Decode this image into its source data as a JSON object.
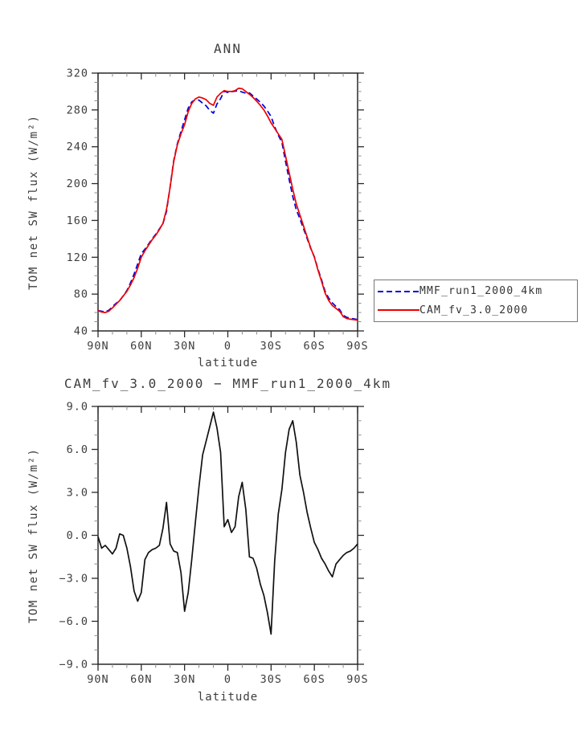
{
  "figure": {
    "background": "#ffffff",
    "text_color": "#3d3d3d",
    "frame_color": "#1a1a1a",
    "major_tick_color": "#2a2a2a",
    "minor_tick_color": "#8a8a8a"
  },
  "legend": {
    "entries": [
      {
        "label": "MMF_run1_2000_4km",
        "color": "#0000dd",
        "style": "dashed"
      },
      {
        "label": "CAM_fv_3.0_2000",
        "color": "#ee0000",
        "style": "solid"
      }
    ]
  },
  "chart_data": [
    {
      "type": "line",
      "title": "ANN",
      "xlabel": "latitude",
      "ylabel": "TOM net SW flux (W/m²)",
      "ylim": [
        40,
        320
      ],
      "ymajor_step": 40,
      "yminor_step": 10,
      "xtick_labels": [
        "90N",
        "60N",
        "30N",
        "0",
        "30S",
        "60S",
        "90S"
      ],
      "ytick_labels": [
        "40",
        "80",
        "120",
        "160",
        "200",
        "240",
        "280",
        "320"
      ],
      "grid": false,
      "legend_position": "outside-right-bottom",
      "lat_start": 90,
      "lat_step": -2.5,
      "series": [
        {
          "name": "MMF_run1_2000_4km",
          "color": "#0000dd",
          "dash": "7 4",
          "values": [
            62.1,
            61.4,
            60.7,
            62.5,
            66.3,
            69.9,
            72.9,
            78,
            83.9,
            92.2,
            101.9,
            112.6,
            124,
            128.7,
            134.2,
            140,
            144.9,
            150.7,
            156.5,
            169.7,
            196.6,
            225.1,
            243.2,
            256.6,
            269.3,
            282,
            288.7,
            291.1,
            290.6,
            287.4,
            284.4,
            279.4,
            276.4,
            286.5,
            292.2,
            300.4,
            298.9,
            299.8,
            300.4,
            300.8,
            299.3,
            298.2,
            298.5,
            295.1,
            291.8,
            288.4,
            284.2,
            278.9,
            272.9,
            261.8,
            252.5,
            244.8,
            224.2,
            204.6,
            186,
            171.5,
            161.8,
            151,
            140.4,
            129.5,
            120.5,
            107,
            95.6,
            83,
            75.5,
            70.4,
            66.5,
            63.2,
            56.9,
            54.7,
            53.8,
            53.1,
            52.3
          ]
        },
        {
          "name": "CAM_fv_3.0_2000",
          "color": "#ee0000",
          "dash": "",
          "values": [
            62,
            60.5,
            60,
            61.5,
            65,
            69,
            73,
            78,
            83,
            90,
            98,
            108,
            120,
            127,
            133,
            139,
            144,
            150,
            157,
            172,
            196,
            224,
            242,
            254,
            264,
            278,
            287,
            292,
            294,
            293,
            291,
            287,
            285,
            294,
            298,
            301,
            300,
            300,
            301,
            303.5,
            303,
            300,
            297,
            293.5,
            289.5,
            285,
            280,
            273.5,
            266,
            260,
            254,
            248,
            230,
            212,
            194,
            178,
            166,
            154,
            142,
            130,
            120,
            106,
            94,
            81,
            73,
            67.5,
            64.5,
            61.5,
            55.5,
            53.5,
            52.7,
            52.2,
            51.7
          ]
        }
      ]
    },
    {
      "type": "line",
      "title": "CAM_fv_3.0_2000 − MMF_run1_2000_4km",
      "xlabel": "latitude",
      "ylabel": "TOM net SW flux (W/m²)",
      "ylim": [
        -9,
        9
      ],
      "ymajor_step": 3,
      "yminor_step": 1,
      "xtick_labels": [
        "90N",
        "60N",
        "30N",
        "0",
        "30S",
        "60S",
        "90S"
      ],
      "ytick_labels": [
        "−9.0",
        "−6.0",
        "−3.0",
        "0.0",
        "3.0",
        "6.0",
        "9.0"
      ],
      "grid": false,
      "lat_start": 90,
      "lat_step": -2.5,
      "series": [
        {
          "name": "CAM_fv_3.0_2000 − MMF_run1_2000_4km",
          "color": "#111111",
          "dash": "",
          "values": [
            -0.1,
            -0.9,
            -0.7,
            -1.0,
            -1.3,
            -0.9,
            0.1,
            0.0,
            -0.9,
            -2.2,
            -3.9,
            -4.6,
            -4.0,
            -1.7,
            -1.2,
            -1.0,
            -0.9,
            -0.7,
            0.5,
            2.3,
            -0.6,
            -1.1,
            -1.2,
            -2.6,
            -5.3,
            -4.0,
            -1.7,
            0.9,
            3.4,
            5.6,
            6.6,
            7.6,
            8.6,
            7.5,
            5.8,
            0.6,
            1.1,
            0.2,
            0.6,
            2.7,
            3.7,
            1.8,
            -1.5,
            -1.6,
            -2.3,
            -3.4,
            -4.2,
            -5.4,
            -6.9,
            -1.8,
            1.5,
            3.2,
            5.8,
            7.4,
            8.0,
            6.5,
            4.2,
            3.0,
            1.6,
            0.5,
            -0.5,
            -1.0,
            -1.6,
            -2.0,
            -2.5,
            -2.9,
            -2.0,
            -1.7,
            -1.4,
            -1.2,
            -1.1,
            -0.9,
            -0.6
          ]
        }
      ]
    }
  ]
}
